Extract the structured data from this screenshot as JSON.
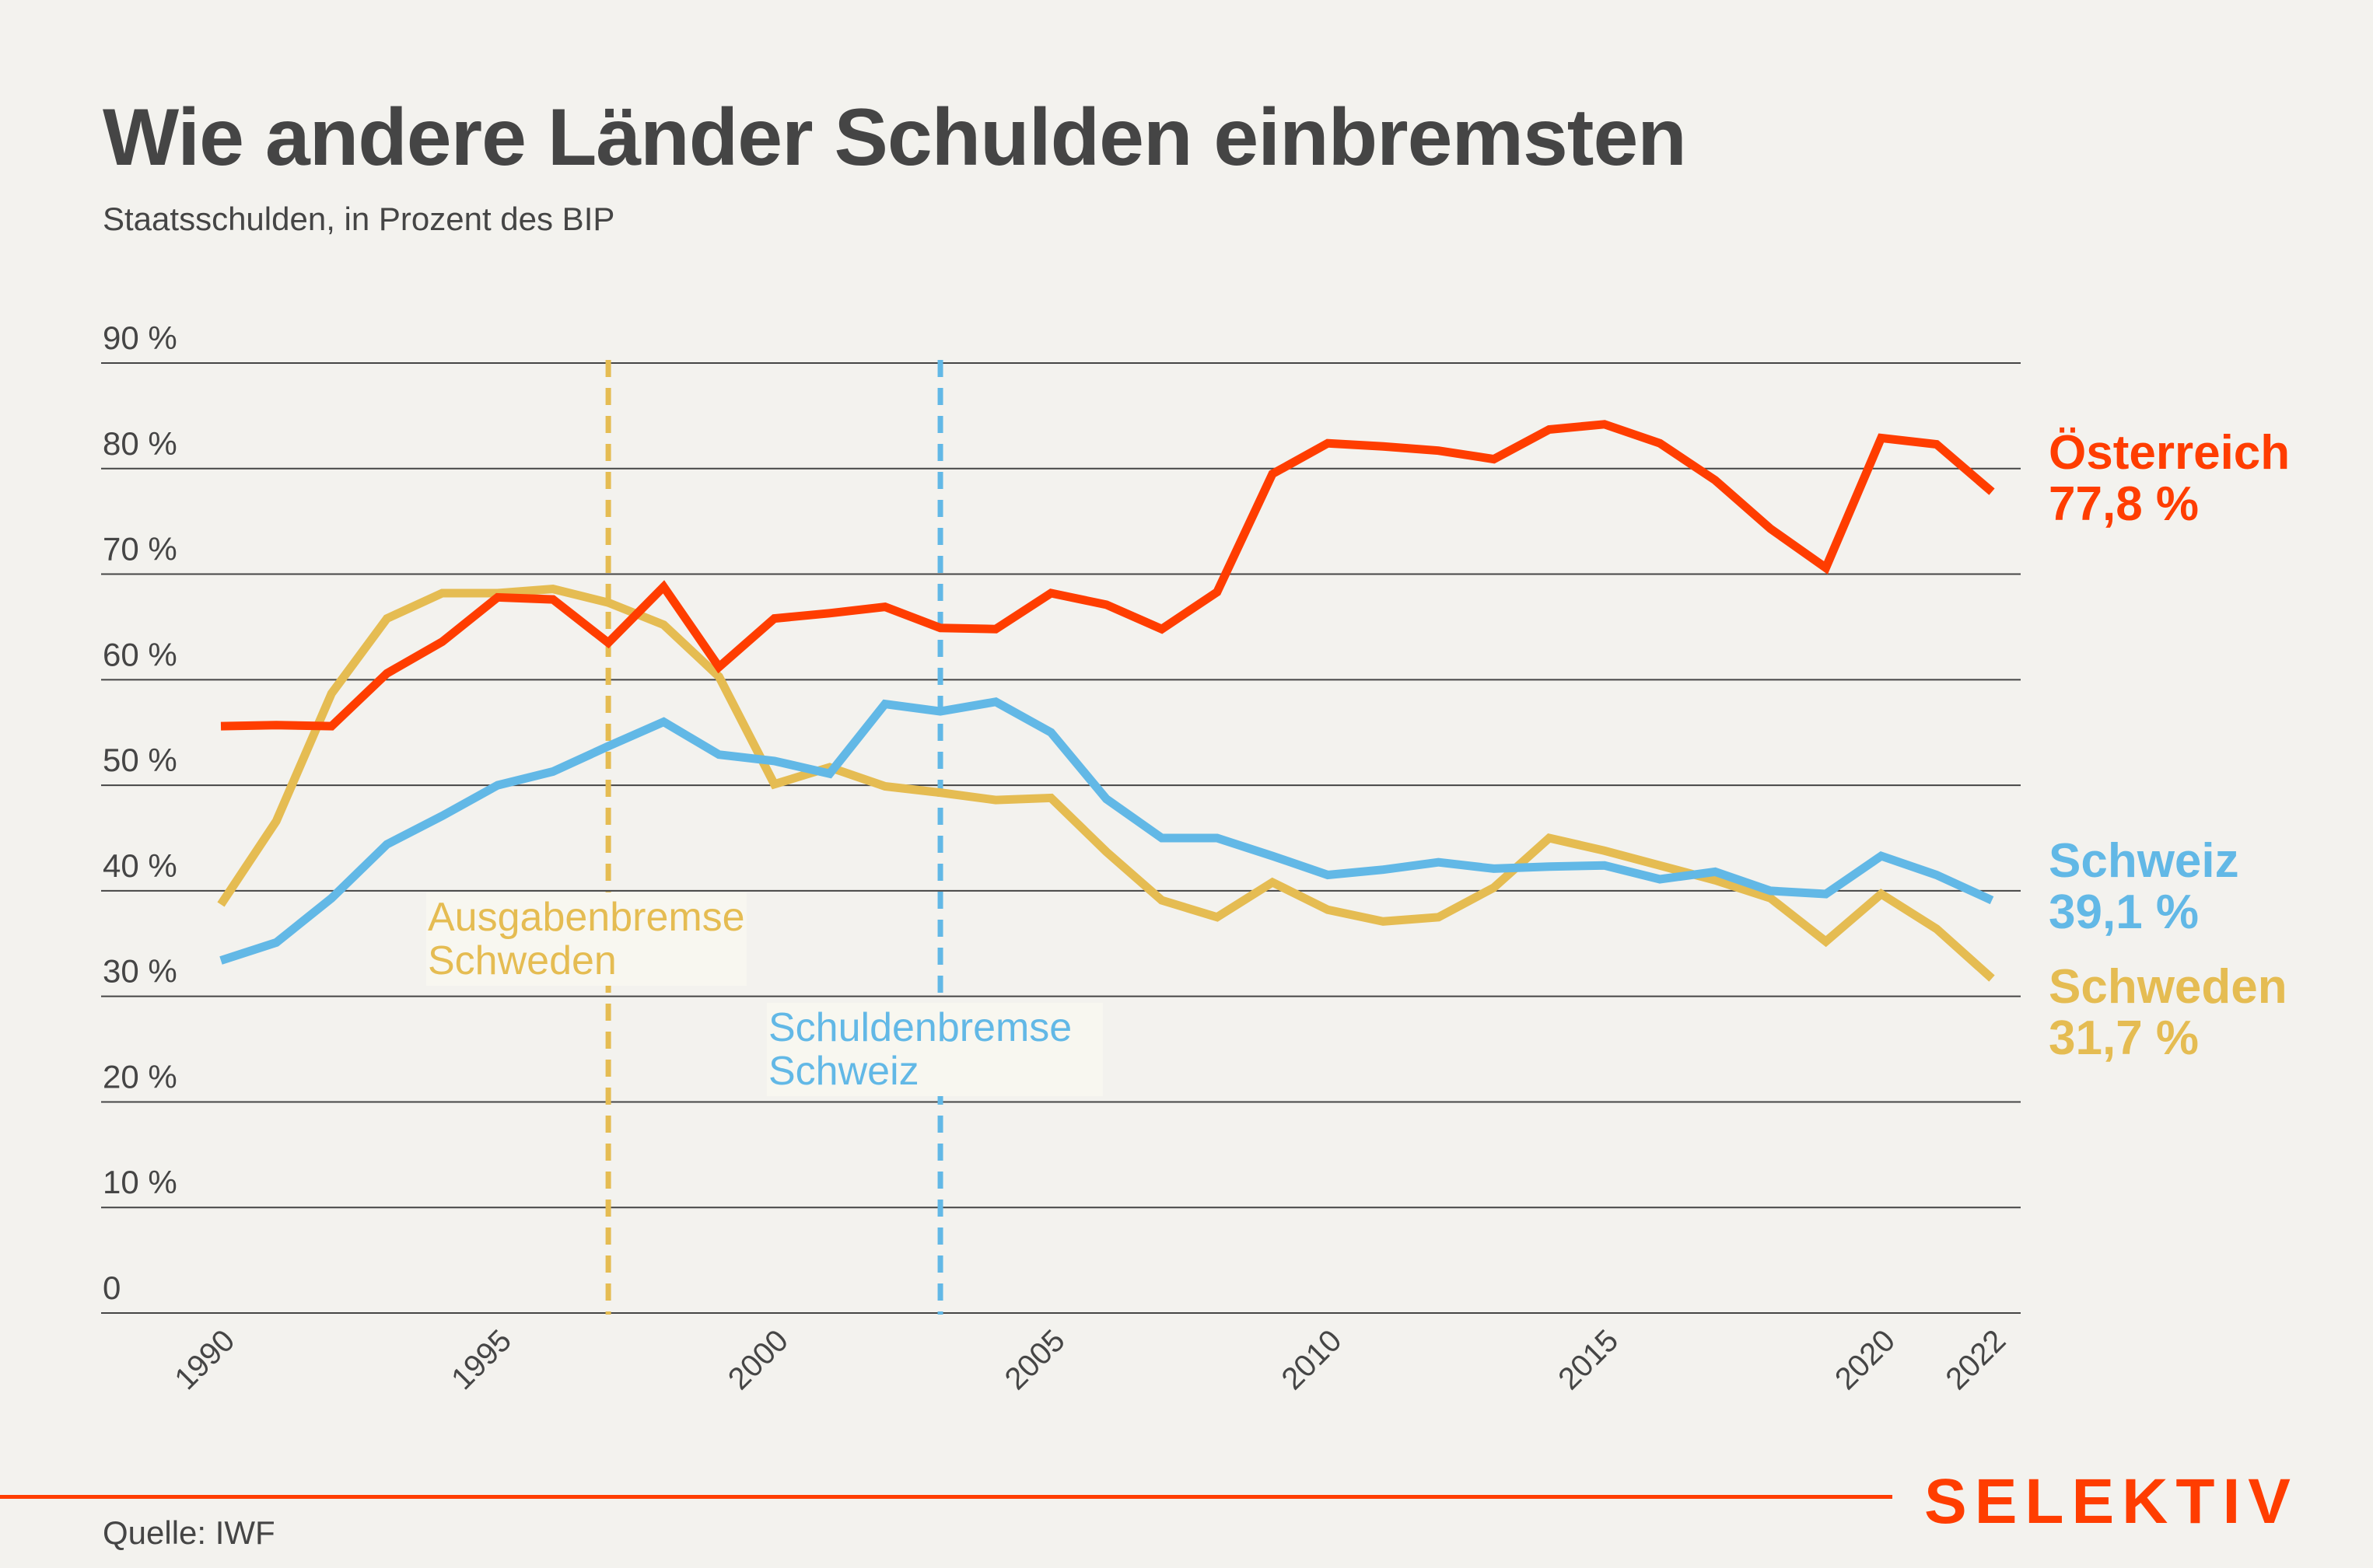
{
  "header": {
    "title": "Wie andere Länder Schulden einbremsten",
    "subtitle": "Staatsschulden, in Prozent des BIP"
  },
  "footer": {
    "source": "Quelle: IWF",
    "brand": "SELEKTIV",
    "brand_color": "#ff3d00"
  },
  "chart_data": {
    "type": "line",
    "title": "Wie andere Länder Schulden einbremsten",
    "subtitle": "Staatsschulden, in Prozent des BIP",
    "xlabel": "",
    "ylabel": "",
    "ylim": [
      0,
      90
    ],
    "xlim": [
      1990,
      2022
    ],
    "grid": true,
    "y_ticks": [
      0,
      10,
      20,
      30,
      40,
      50,
      60,
      70,
      80,
      90
    ],
    "y_tick_labels": [
      "0",
      "10 %",
      "20 %",
      "30 %",
      "40 %",
      "50 %",
      "60 %",
      "70 %",
      "80 %",
      "90 %"
    ],
    "x_ticks": [
      1990,
      1995,
      2000,
      2005,
      2010,
      2015,
      2020,
      2022
    ],
    "x_tick_labels": [
      "1990",
      "1995",
      "2000",
      "2005",
      "2010",
      "2015",
      "2020",
      "2022"
    ],
    "x": [
      1990,
      1991,
      1992,
      1993,
      1994,
      1995,
      1996,
      1997,
      1998,
      1999,
      2000,
      2001,
      2002,
      2003,
      2004,
      2005,
      2006,
      2007,
      2008,
      2009,
      2010,
      2011,
      2012,
      2013,
      2014,
      2015,
      2016,
      2017,
      2018,
      2019,
      2020,
      2021,
      2022
    ],
    "series": [
      {
        "name": "Österreich",
        "color": "#ff3d00",
        "end_label": "Österreich",
        "end_value_label": "77,8 %",
        "values": [
          55.6,
          55.7,
          55.6,
          60.6,
          63.6,
          67.8,
          67.6,
          63.5,
          68.8,
          61.2,
          65.8,
          66.3,
          66.9,
          64.9,
          64.8,
          68.2,
          67.1,
          64.8,
          68.3,
          79.5,
          82.4,
          82.1,
          81.7,
          80.9,
          83.7,
          84.2,
          82.4,
          78.9,
          74.3,
          70.6,
          82.9,
          82.3,
          77.8
        ]
      },
      {
        "name": "Schweiz",
        "color": "#62b8e6",
        "end_label": "Schweiz",
        "end_value_label": "39,1 %",
        "values": [
          33.4,
          35.1,
          39.3,
          44.4,
          47.1,
          50.0,
          51.3,
          53.7,
          56.0,
          52.9,
          52.3,
          51.1,
          57.7,
          57.0,
          57.9,
          55.0,
          48.7,
          45.0,
          45.0,
          43.3,
          41.5,
          42.0,
          42.7,
          42.1,
          42.3,
          42.4,
          41.1,
          41.8,
          40.0,
          39.7,
          43.3,
          41.5,
          39.1
        ]
      },
      {
        "name": "Schweden",
        "color": "#e5bc52",
        "end_label": "Schweden",
        "end_value_label": "31,7 %",
        "values": [
          38.7,
          46.6,
          58.7,
          65.8,
          68.2,
          68.2,
          68.6,
          67.3,
          65.2,
          60.3,
          50.1,
          51.7,
          49.9,
          49.3,
          48.6,
          48.8,
          43.7,
          39.1,
          37.5,
          40.8,
          38.2,
          37.1,
          37.5,
          40.3,
          45.0,
          43.8,
          42.4,
          41.0,
          39.3,
          35.2,
          39.7,
          36.4,
          31.7
        ]
      }
    ],
    "annotations": [
      {
        "type": "vline",
        "x": 1997,
        "color": "#e5bc52",
        "label_lines": [
          "Ausgabenbremse",
          "Schweden"
        ]
      },
      {
        "type": "vline",
        "x": 2003,
        "color": "#62b8e6",
        "label_lines": [
          "Schuldenbremse",
          "Schweiz"
        ]
      }
    ],
    "legend": "end-of-line labels (right)"
  }
}
